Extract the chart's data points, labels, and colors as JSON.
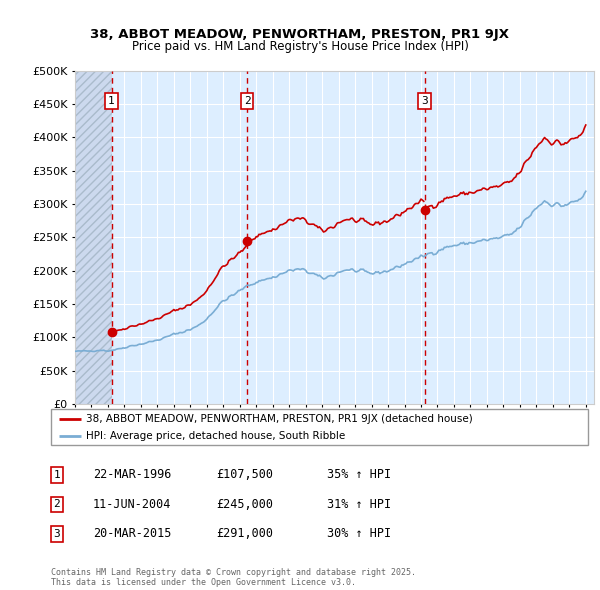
{
  "title1": "38, ABBOT MEADOW, PENWORTHAM, PRESTON, PR1 9JX",
  "title2": "Price paid vs. HM Land Registry's House Price Index (HPI)",
  "legend_line1": "38, ABBOT MEADOW, PENWORTHAM, PRESTON, PR1 9JX (detached house)",
  "legend_line2": "HPI: Average price, detached house, South Ribble",
  "footer": "Contains HM Land Registry data © Crown copyright and database right 2025.\nThis data is licensed under the Open Government Licence v3.0.",
  "transactions": [
    {
      "num": 1,
      "date": "22-MAR-1996",
      "price": 107500,
      "pct": "35%",
      "x_year": 1996.22
    },
    {
      "num": 2,
      "date": "11-JUN-2004",
      "price": 245000,
      "pct": "31%",
      "x_year": 2004.44
    },
    {
      "num": 3,
      "date": "20-MAR-2015",
      "price": 291000,
      "pct": "30%",
      "x_year": 2015.22
    }
  ],
  "hpi_color": "#7aadd4",
  "price_color": "#cc0000",
  "bg_plot": "#ddeeff",
  "ylim": [
    0,
    500000
  ],
  "yticks": [
    0,
    50000,
    100000,
    150000,
    200000,
    250000,
    300000,
    350000,
    400000,
    450000,
    500000
  ],
  "xmin": 1994.0,
  "xmax": 2025.5
}
